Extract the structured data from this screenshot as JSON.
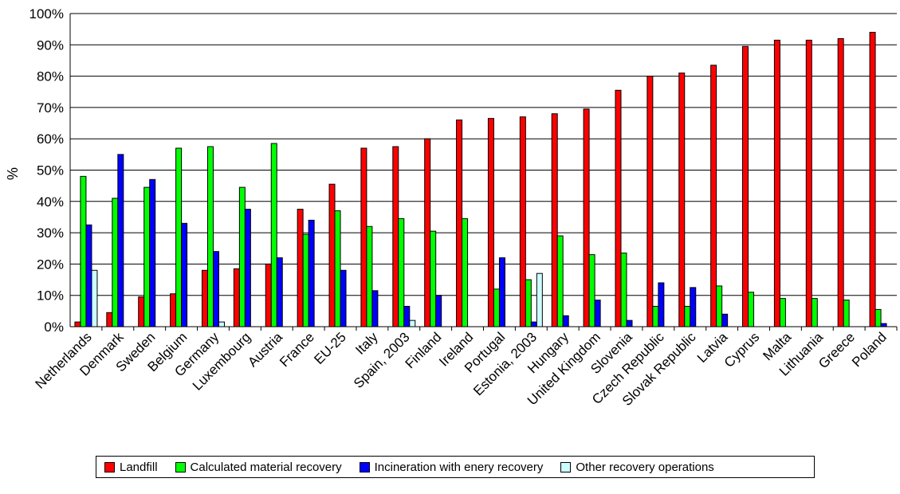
{
  "chart_data": {
    "type": "bar",
    "title": "",
    "xlabel": "",
    "ylabel": "%",
    "ylim": [
      0,
      100
    ],
    "yticks": [
      "0%",
      "10%",
      "20%",
      "30%",
      "40%",
      "50%",
      "60%",
      "70%",
      "80%",
      "90%",
      "100%"
    ],
    "grid": true,
    "legend_position": "bottom",
    "categories": [
      "Netherlands",
      "Denmark",
      "Sweden",
      "Belgium",
      "Germany",
      "Luxembourg",
      "Austria",
      "France",
      "EU-25",
      "Italy",
      "Spain, 2003",
      "Finland",
      "Ireland",
      "Portugal",
      "Estonia, 2003",
      "Hungary",
      "United Kingdom",
      "Slovenia",
      "Czech Republic",
      "Slovak Republic",
      "Latvia",
      "Cyprus",
      "Malta",
      "Lithuania",
      "Greece",
      "Poland"
    ],
    "series": [
      {
        "name": "Landfill",
        "color": "#ff0000",
        "values": [
          1.5,
          4.5,
          9.5,
          10.5,
          18,
          18.5,
          20,
          37.5,
          45.5,
          57,
          57.5,
          60,
          66,
          66.5,
          67,
          68,
          69.5,
          75.5,
          80,
          81,
          83.5,
          89.5,
          91.5,
          91.5,
          92,
          94
        ]
      },
      {
        "name": "Calculated material recovery",
        "color": "#00ff00",
        "values": [
          48,
          41,
          44.5,
          57,
          57.5,
          44.5,
          58.5,
          29.5,
          37,
          32,
          34.5,
          30.5,
          34.5,
          12,
          15,
          29,
          23,
          23.5,
          6.5,
          6.5,
          13,
          11,
          9,
          9,
          8.5,
          5.5
        ]
      },
      {
        "name": "Incineration with enery recovery",
        "color": "#0000ff",
        "values": [
          32.5,
          55,
          47,
          33,
          24,
          37.5,
          22,
          34,
          18,
          11.5,
          6.5,
          10,
          0,
          22,
          1.5,
          3.5,
          8.5,
          2,
          14,
          12.5,
          4,
          0,
          0,
          0,
          0,
          1
        ]
      },
      {
        "name": "Other recovery operations",
        "color": "#ccffff",
        "values": [
          18,
          0,
          0,
          0,
          1.5,
          0,
          0,
          0,
          0,
          0,
          2,
          0,
          0,
          0,
          17,
          0,
          0,
          0,
          0,
          0,
          0,
          0,
          0,
          0,
          0,
          0
        ]
      }
    ]
  }
}
